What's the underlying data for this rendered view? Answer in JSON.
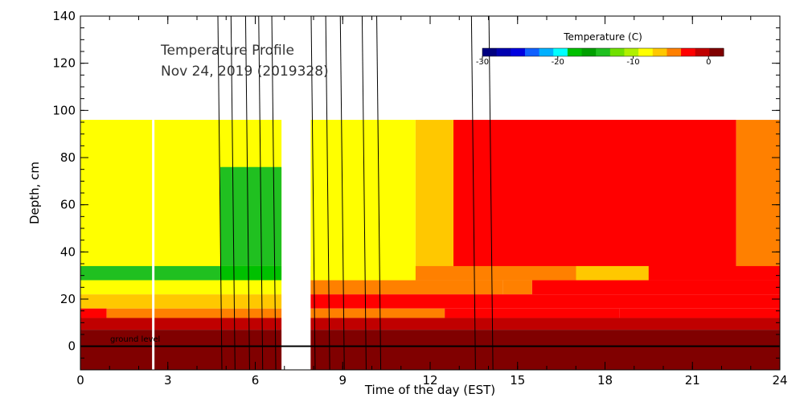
{
  "chart_data": {
    "type": "heatmap",
    "title_lines": [
      "Temperature Profile",
      "Nov 24, 2019 (2019328)"
    ],
    "xlabel": "Time of the day (EST)",
    "ylabel": "Depth, cm",
    "xlim": [
      0,
      24
    ],
    "ylim": [
      -10,
      140
    ],
    "xticks": [
      "0",
      "3",
      "6",
      "9",
      "12",
      "15",
      "18",
      "21",
      "24"
    ],
    "yticks": [
      "0",
      "20",
      "40",
      "60",
      "80",
      "100",
      "120",
      "140"
    ],
    "ground_label": "ground level",
    "ground_depth": 0,
    "gap_hours": [
      6.9,
      7.9
    ],
    "colorbar": {
      "title": "Temperature (C)",
      "ticks": [
        "-30",
        "-20",
        "-10",
        "0"
      ],
      "range": [
        -30,
        2
      ],
      "colors": [
        "#000080",
        "#0000b0",
        "#0000e0",
        "#1060ff",
        "#00b0ff",
        "#00ffff",
        "#00c000",
        "#00a000",
        "#20c020",
        "#70e000",
        "#b0f000",
        "#ffff00",
        "#ffc800",
        "#ff8000",
        "#ff0000",
        "#c00000",
        "#800000"
      ]
    },
    "depth_layers": [
      {
        "from": 28,
        "to": 96,
        "segments": [
          {
            "x": [
              0,
              4.8
            ],
            "t": -8.5
          },
          {
            "x": [
              4.8,
              6.9
            ],
            "t": -8.5
          },
          {
            "x": [
              7.9,
              11.5
            ],
            "t": -8.5
          },
          {
            "x": [
              11.5,
              12.8
            ],
            "t": -7
          },
          {
            "x": [
              12.8,
              22.5
            ],
            "t": -3
          },
          {
            "x": [
              22.5,
              24
            ],
            "t": -5
          }
        ]
      },
      {
        "from": 34,
        "to": 76,
        "segments": [
          {
            "x": [
              4.8,
              6.9
            ],
            "t": -14
          }
        ]
      },
      {
        "from": 28,
        "to": 34,
        "segments": [
          {
            "x": [
              0,
              4.8
            ],
            "t": -14
          },
          {
            "x": [
              4.8,
              6.9
            ],
            "t": -18
          },
          {
            "x": [
              7.9,
              11.5
            ],
            "t": -8.5
          },
          {
            "x": [
              11.5,
              17
            ],
            "t": -5
          },
          {
            "x": [
              17,
              19.5
            ],
            "t": -6
          },
          {
            "x": [
              19.5,
              24
            ],
            "t": -3
          }
        ]
      },
      {
        "from": 22,
        "to": 28,
        "segments": [
          {
            "x": [
              0,
              6.9
            ],
            "t": -8
          },
          {
            "x": [
              7.9,
              14.5
            ],
            "t": -5
          },
          {
            "x": [
              14.5,
              15.5
            ],
            "t": -4
          },
          {
            "x": [
              15.5,
              24
            ],
            "t": -3
          }
        ]
      },
      {
        "from": 16,
        "to": 22,
        "segments": [
          {
            "x": [
              0,
              6.9
            ],
            "t": -6
          },
          {
            "x": [
              7.9,
              24
            ],
            "t": -3
          }
        ]
      },
      {
        "from": 12,
        "to": 16,
        "segments": [
          {
            "x": [
              0,
              0.9
            ],
            "t": -3
          },
          {
            "x": [
              0.9,
              6.9
            ],
            "t": -5
          },
          {
            "x": [
              7.9,
              12.5
            ],
            "t": -5
          },
          {
            "x": [
              12.5,
              18.5
            ],
            "t": -3
          },
          {
            "x": [
              18.5,
              24
            ],
            "t": -2
          }
        ]
      },
      {
        "from": 7,
        "to": 12,
        "segments": [
          {
            "x": [
              0,
              1.6
            ],
            "t": 0
          },
          {
            "x": [
              1.6,
              6.9
            ],
            "t": -1
          },
          {
            "x": [
              7.9,
              13.2
            ],
            "t": -1
          },
          {
            "x": [
              13.2,
              24
            ],
            "t": 0
          }
        ]
      },
      {
        "from": -10,
        "to": 7,
        "segments": [
          {
            "x": [
              0,
              6.9
            ],
            "t": 1.5
          },
          {
            "x": [
              7.9,
              24
            ],
            "t": 1.5
          }
        ]
      }
    ],
    "pointer_line_hours": [
      4.8,
      5.25,
      5.75,
      6.2,
      6.65,
      8.0,
      8.5,
      9.0,
      9.75,
      10.25,
      13.5,
      14.1
    ],
    "marker_hour": 2.5
  }
}
